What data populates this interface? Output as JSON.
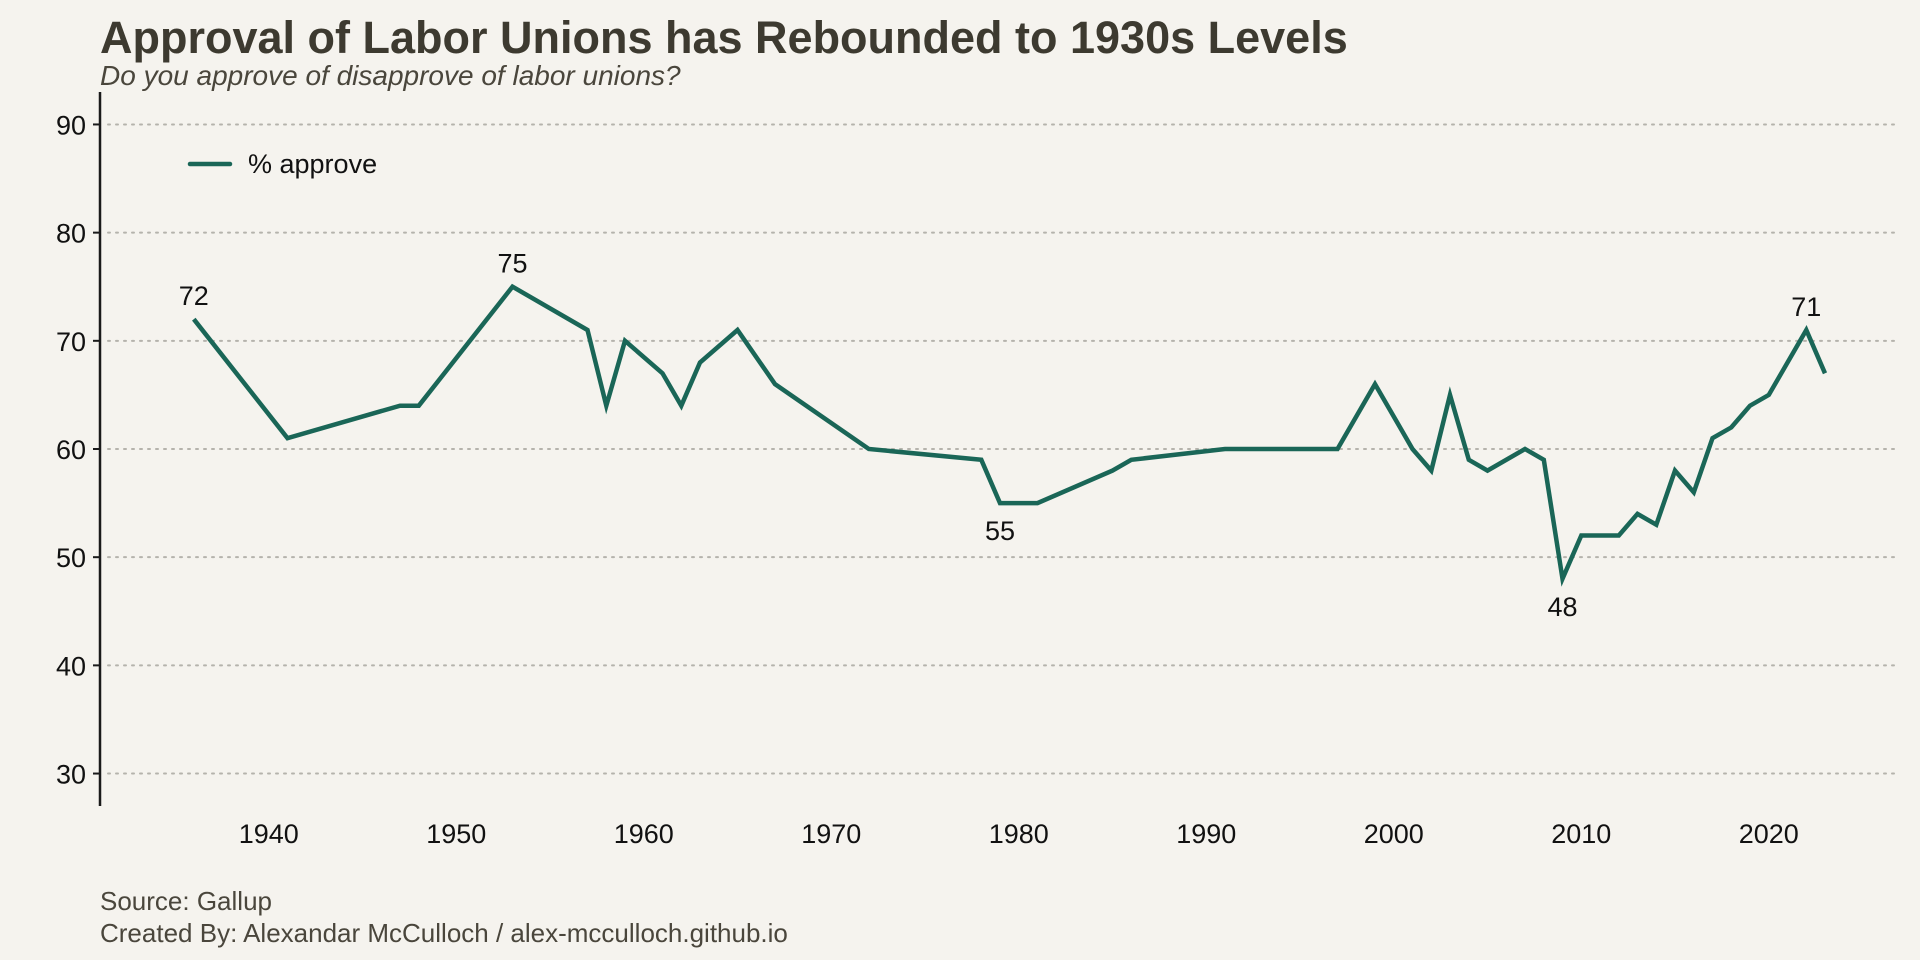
{
  "title": "Approval of Labor Unions has Rebounded to 1930s Levels",
  "subtitle": "Do you approve of disapprove of labor unions?",
  "footer": {
    "source": "Source: Gallup",
    "credit": "Created By: Alexandar McCulloch / alex-mcculloch.github.io"
  },
  "colors": {
    "background": "#f5f3ee",
    "line": "#1a6657",
    "grid": "#b5b3ac",
    "title": "#3d3a30"
  },
  "chart_data": {
    "type": "line",
    "title": "Approval of Labor Unions has Rebounded to 1930s Levels",
    "subtitle": "Do you approve of disapprove of labor unions?",
    "xlabel": "",
    "ylabel": "",
    "xlim": [
      1931,
      2027
    ],
    "ylim": [
      27,
      93
    ],
    "x_ticks": [
      1940,
      1950,
      1960,
      1970,
      1980,
      1990,
      2000,
      2010,
      2020
    ],
    "y_ticks": [
      30,
      40,
      50,
      60,
      70,
      80,
      90
    ],
    "grid": "horizontal dotted",
    "legend_position": "top-left",
    "series": [
      {
        "name": "% approve",
        "x": [
          1936,
          1941,
          1947,
          1948,
          1953,
          1957,
          1958,
          1959,
          1961,
          1962,
          1963,
          1965,
          1967,
          1972,
          1978,
          1979,
          1981,
          1985,
          1986,
          1991,
          1997,
          1999,
          2001,
          2002,
          2003,
          2004,
          2005,
          2007,
          2008,
          2009,
          2010,
          2012,
          2013,
          2014,
          2015,
          2016,
          2017,
          2018,
          2019,
          2020,
          2022,
          2023
        ],
        "y": [
          72,
          61,
          64,
          64,
          75,
          71,
          64,
          70,
          67,
          64,
          68,
          71,
          66,
          60,
          59,
          55,
          55,
          58,
          59,
          60,
          60,
          66,
          60,
          58,
          65,
          59,
          58,
          60,
          59,
          48,
          52,
          52,
          54,
          53,
          58,
          56,
          61,
          62,
          64,
          65,
          71,
          67
        ]
      }
    ],
    "annotations": [
      {
        "x": 1936,
        "y": 72,
        "text": "72",
        "position": "above"
      },
      {
        "x": 1953,
        "y": 75,
        "text": "75",
        "position": "above"
      },
      {
        "x": 1979,
        "y": 55,
        "text": "55",
        "position": "below"
      },
      {
        "x": 2009,
        "y": 48,
        "text": "48",
        "position": "below"
      },
      {
        "x": 2022,
        "y": 71,
        "text": "71",
        "position": "above"
      }
    ]
  }
}
